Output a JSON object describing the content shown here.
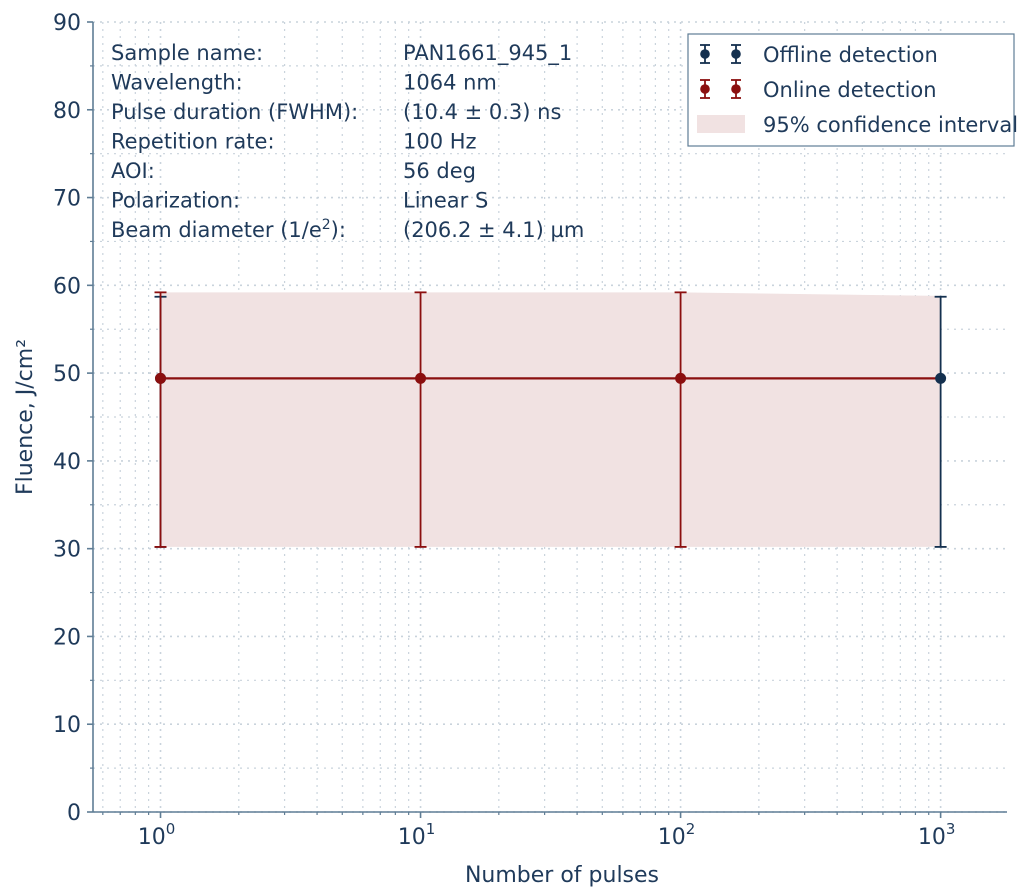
{
  "chart_data": {
    "type": "scatter",
    "xlabel": "Number of pulses",
    "ylabel": "Fluence, J/cm²",
    "xscale": "log",
    "xlim": [
      0.55,
      1800
    ],
    "ylim": [
      0,
      90
    ],
    "grid": true,
    "legend_position": "top-right",
    "x_ticks": [
      {
        "base": "10",
        "exp": "0",
        "value": 1
      },
      {
        "base": "10",
        "exp": "1",
        "value": 10
      },
      {
        "base": "10",
        "exp": "2",
        "value": 100
      },
      {
        "base": "10",
        "exp": "3",
        "value": 1000
      }
    ],
    "y_ticks": [
      "0",
      "10",
      "20",
      "30",
      "40",
      "50",
      "60",
      "70",
      "80",
      "90"
    ],
    "series": [
      {
        "name": "Offline detection",
        "color": "#14304f",
        "points": [
          {
            "x": 1,
            "y": 49.4,
            "ylow": 30.2,
            "yhigh": 58.7
          },
          {
            "x": 1000,
            "y": 49.4,
            "ylow": 30.2,
            "yhigh": 58.7
          }
        ]
      },
      {
        "name": "Online detection",
        "color": "#8b0f0f",
        "points": [
          {
            "x": 1,
            "y": 49.4,
            "ylow": 30.2,
            "yhigh": 59.2
          },
          {
            "x": 10,
            "y": 49.4,
            "ylow": 30.2,
            "yhigh": 59.2
          },
          {
            "x": 100,
            "y": 49.4,
            "ylow": 30.2,
            "yhigh": 59.2
          }
        ]
      }
    ],
    "fit_line": {
      "x": [
        1,
        1000
      ],
      "y": [
        49.4,
        49.4
      ],
      "color": "#8b0f0f"
    },
    "confidence_band": {
      "name": "95% confidence interval",
      "color": "#f1e2e2",
      "x": [
        1,
        100,
        1000
      ],
      "lower": [
        30.2,
        30.2,
        30.2
      ],
      "upper": [
        59.2,
        59.2,
        58.8
      ]
    },
    "info_table": [
      {
        "key": "Sample name:",
        "value": "PAN1661_945_1"
      },
      {
        "key": "Wavelength:",
        "value": "1064 nm"
      },
      {
        "key": "Pulse duration (FWHM):",
        "value": "(10.4 ± 0.3) ns"
      },
      {
        "key": "Repetition rate:",
        "value": "100 Hz"
      },
      {
        "key": "AOI:",
        "value": "56 deg"
      },
      {
        "key": "Polarization:",
        "value": "Linear S"
      },
      {
        "key": "Beam diameter (1/e",
        "key_sup": "2",
        "key_suffix": "):",
        "value": "(206.2 ± 4.1) µm"
      }
    ],
    "colors": {
      "axis": "#5f7d95",
      "text": "#1f3a5a",
      "grid": "#c9d3dc"
    }
  }
}
